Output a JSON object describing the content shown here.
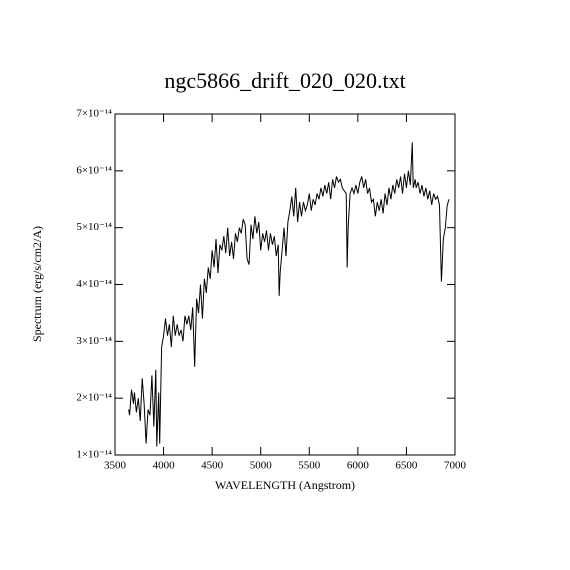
{
  "chart_data": {
    "type": "line",
    "title": "ngc5866_drift_020_020.txt",
    "xlabel": "WAVELENGTH (Angstrom)",
    "ylabel": "Spectrum (erg/s/cm2/A)",
    "color": "#000000",
    "xlim": [
      3500,
      7000
    ],
    "xticks": [
      3500,
      4000,
      4500,
      5000,
      5500,
      6000,
      6500,
      7000
    ],
    "ylim": [
      1e-14,
      7e-14
    ],
    "yticks": [
      {
        "value": 1e-14,
        "label": "1×10⁻¹⁴"
      },
      {
        "value": 2e-14,
        "label": "2×10⁻¹⁴"
      },
      {
        "value": 3e-14,
        "label": "3×10⁻¹⁴"
      },
      {
        "value": 4e-14,
        "label": "4×10⁻¹⁴"
      },
      {
        "value": 5e-14,
        "label": "5×10⁻¹⁴"
      },
      {
        "value": 6e-14,
        "label": "6×10⁻¹⁴"
      },
      {
        "value": 7e-14,
        "label": "7×10⁻¹⁴"
      }
    ],
    "x": [
      3640,
      3650,
      3670,
      3690,
      3700,
      3720,
      3740,
      3760,
      3780,
      3800,
      3820,
      3840,
      3860,
      3880,
      3900,
      3920,
      3930,
      3950,
      3960,
      3980,
      4000,
      4020,
      4040,
      4060,
      4080,
      4100,
      4120,
      4140,
      4160,
      4180,
      4200,
      4220,
      4240,
      4260,
      4280,
      4300,
      4320,
      4340,
      4360,
      4380,
      4400,
      4420,
      4440,
      4460,
      4480,
      4500,
      4520,
      4540,
      4560,
      4580,
      4600,
      4620,
      4640,
      4660,
      4680,
      4700,
      4720,
      4740,
      4760,
      4780,
      4800,
      4820,
      4840,
      4860,
      4880,
      4900,
      4920,
      4940,
      4960,
      4980,
      5000,
      5020,
      5040,
      5060,
      5080,
      5100,
      5120,
      5140,
      5160,
      5180,
      5190,
      5200,
      5220,
      5240,
      5260,
      5280,
      5300,
      5320,
      5340,
      5360,
      5380,
      5400,
      5420,
      5440,
      5460,
      5480,
      5500,
      5520,
      5540,
      5560,
      5580,
      5600,
      5620,
      5640,
      5660,
      5680,
      5700,
      5720,
      5740,
      5760,
      5780,
      5800,
      5820,
      5840,
      5860,
      5880,
      5890,
      5900,
      5920,
      5940,
      5960,
      5980,
      6000,
      6020,
      6040,
      6060,
      6080,
      6100,
      6120,
      6140,
      6160,
      6180,
      6200,
      6220,
      6240,
      6260,
      6280,
      6300,
      6320,
      6340,
      6360,
      6380,
      6400,
      6420,
      6440,
      6460,
      6480,
      6500,
      6520,
      6540,
      6560,
      6570,
      6590,
      6600,
      6620,
      6640,
      6660,
      6680,
      6700,
      6720,
      6740,
      6760,
      6780,
      6800,
      6820,
      6840,
      6860,
      6880,
      6900,
      6920,
      6940
    ],
    "values": [
      1.8e-14,
      1.7e-14,
      2.15e-14,
      1.9e-14,
      2.1e-14,
      1.75e-14,
      2e-14,
      1.6e-14,
      2.35e-14,
      1.9e-14,
      1.2e-14,
      1.8e-14,
      1.7e-14,
      2.4e-14,
      1.5e-14,
      2.5e-14,
      1.15e-14,
      2.1e-14,
      1.2e-14,
      2.9e-14,
      3.1e-14,
      3.4e-14,
      3.1e-14,
      3.3e-14,
      2.9e-14,
      3.45e-14,
      3.1e-14,
      3.3e-14,
      3.1e-14,
      3.2e-14,
      3e-14,
      3.45e-14,
      3.3e-14,
      3.45e-14,
      3.2e-14,
      3.6e-14,
      2.55e-14,
      3.75e-14,
      3.5e-14,
      4e-14,
      3.4e-14,
      4.1e-14,
      3.85e-14,
      4.3e-14,
      4.1e-14,
      4.6e-14,
      4.3e-14,
      4.8e-14,
      4.2e-14,
      4.7e-14,
      4.6e-14,
      4.85e-14,
      4.55e-14,
      5e-14,
      4.5e-14,
      4.75e-14,
      4.45e-14,
      4.9e-14,
      4.75e-14,
      5e-14,
      4.9e-14,
      5.15e-14,
      5.05e-14,
      4.45e-14,
      4.35e-14,
      5.05e-14,
      4.8e-14,
      5.2e-14,
      4.9e-14,
      5.1e-14,
      4.6e-14,
      4.9e-14,
      4.75e-14,
      4.95e-14,
      4.6e-14,
      4.9e-14,
      4.7e-14,
      4.85e-14,
      4.5e-14,
      4.7e-14,
      3.8e-14,
      4.2e-14,
      4.6e-14,
      5e-14,
      4.5e-14,
      5.1e-14,
      5.3e-14,
      5.55e-14,
      5.2e-14,
      5.7e-14,
      5.1e-14,
      5.45e-14,
      5.2e-14,
      5.45e-14,
      5.3e-14,
      5.4e-14,
      5.6e-14,
      5.3e-14,
      5.5e-14,
      5.4e-14,
      5.6e-14,
      5.5e-14,
      5.7e-14,
      5.55e-14,
      5.75e-14,
      5.6e-14,
      5.8e-14,
      5.5e-14,
      5.85e-14,
      5.7e-14,
      5.9e-14,
      5.8e-14,
      5.85e-14,
      5.7e-14,
      5.65e-14,
      5.6e-14,
      4.3e-14,
      5e-14,
      5.6e-14,
      5.7e-14,
      5.6e-14,
      5.75e-14,
      5.6e-14,
      5.8e-14,
      5.9e-14,
      5.7e-14,
      5.85e-14,
      5.6e-14,
      5.7e-14,
      5.45e-14,
      5.5e-14,
      5.2e-14,
      5.45e-14,
      5.3e-14,
      5.5e-14,
      5.25e-14,
      5.6e-14,
      5.4e-14,
      5.7e-14,
      5.5e-14,
      5.75e-14,
      5.6e-14,
      5.85e-14,
      5.7e-14,
      5.9e-14,
      5.6e-14,
      5.95e-14,
      5.7e-14,
      6e-14,
      5.75e-14,
      6.5e-14,
      5.7e-14,
      5.85e-14,
      5.7e-14,
      5.8e-14,
      5.6e-14,
      5.75e-14,
      5.55e-14,
      5.7e-14,
      5.5e-14,
      5.65e-14,
      5.4e-14,
      5.6e-14,
      5.5e-14,
      5.55e-14,
      5.4e-14,
      4.05e-14,
      4.8e-14,
      5e-14,
      5.4e-14,
      5.5e-14
    ]
  }
}
